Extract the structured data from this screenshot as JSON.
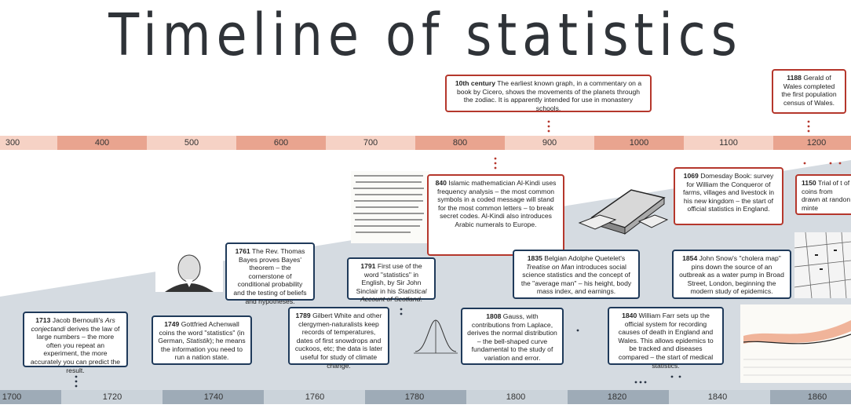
{
  "title": "Timeline of statistics",
  "colors": {
    "top_scale_dark": "#e9a48f",
    "top_scale_light": "#f6d2c5",
    "bottom_scale_dark": "#9eabb7",
    "bottom_scale_light": "#cbd3da",
    "wedge": "#d5dbe1",
    "red_border": "#b5372c",
    "blue_border": "#1f3a5a"
  },
  "top_scale": {
    "ticks": [
      "300",
      "400",
      "500",
      "600",
      "700",
      "800",
      "900",
      "1000",
      "1100",
      "1200"
    ]
  },
  "bottom_scale": {
    "ticks": [
      "1700",
      "1720",
      "1740",
      "1760",
      "1780",
      "1800",
      "1820",
      "1840",
      "1860"
    ]
  },
  "events_top": [
    {
      "year": "10th century",
      "text": "The earliest known graph, in a commentary on a book by Cicero, shows the movements of the planets through the zodiac. It is apparently intended for use in monastery schools."
    },
    {
      "year": "1188",
      "text": "Gerald of Wales completed the first population census of Wales."
    },
    {
      "year": "840",
      "text": "Islamic mathematician Al-Kindi uses frequency analysis – the most common symbols in a coded message will stand for the most common letters – to break secret codes. Al-Kindi also introduces Arabic numerals to Europe."
    },
    {
      "year": "1069",
      "text": "Domesday Book: survey for William the Conqueror of farms, villages and livestock in his new kingdom – the start of official statistics in England."
    },
    {
      "year": "1150",
      "text": "Trial of t of coins from drawn at randon minte"
    }
  ],
  "events_bottom": [
    {
      "year": "1761",
      "text": "The Rev. Thomas Bayes proves Bayes' theorem – the cornerstone of conditional probability and the testing of beliefs and hypotheses."
    },
    {
      "year": "1791",
      "text_a": "First use of the word \"statistics\" in English, by Sir John Sinclair in his ",
      "text_b": "Statistical Account of Scotland",
      "text_c": "."
    },
    {
      "year": "1835",
      "text_a": "Belgian Adolphe Quetelet's ",
      "text_b": "Treatise on Man",
      "text_c": " introduces social science statistics and the concept of the \"average man\" – his height, body mass index, and earnings."
    },
    {
      "year": "1854",
      "text": "John Snow's \"cholera map\" pins down the source of an outbreak as a water pump in Broad Street, London, beginning the modern study of epidemics."
    },
    {
      "year": "1713",
      "text_a": "Jacob Bernoulli's ",
      "text_b": "Ars conjectandi",
      "text_c": " derives the law of large numbers – the more often you repeat an experiment, the more accurately you can predict the result."
    },
    {
      "year": "1749",
      "text_a": "Gottfried Achenwall coins the word \"statistics\" (in German, ",
      "text_b": "Statistik",
      "text_c": "); he means the information you need to run a nation state."
    },
    {
      "year": "1789",
      "text": "Gilbert White and other clergymen-naturalists keep records of temperatures, dates of first snowdrops and cuckoos, etc; the data is later useful for study of climate change."
    },
    {
      "year": "1808",
      "text": "Gauss, with contributions from Laplace, derives the normal distribution – the bell-shaped curve fundamental to the study of variation and error."
    },
    {
      "year": "1840",
      "text": "William Farr sets up the official system for recording causes of death in England and Wales. This allows epidemics to be tracked and diseases compared – the start of medical statistics."
    }
  ]
}
